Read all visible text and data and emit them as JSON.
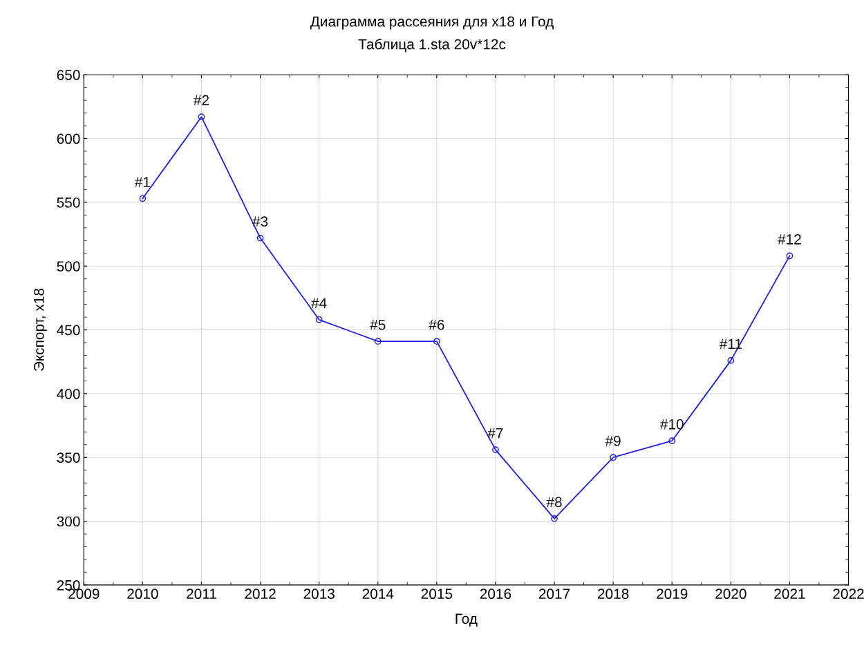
{
  "chart_data": {
    "type": "line",
    "title": "Диаграмма рассеяния для x18 и Год",
    "subtitle": "Таблица 1.sta 20v*12c",
    "xlabel": "Год",
    "ylabel": "Экспорт, x18",
    "x": [
      2010,
      2011,
      2012,
      2013,
      2014,
      2015,
      2016,
      2017,
      2018,
      2019,
      2020,
      2021
    ],
    "series": [
      {
        "color": "#2020e0",
        "values": [
          553,
          617,
          522,
          458,
          441,
          441,
          356,
          302,
          350,
          363,
          426,
          508
        ]
      }
    ],
    "annotations": [
      {
        "text": "#1",
        "x": 2010,
        "y": 553
      },
      {
        "text": "#2",
        "x": 2011,
        "y": 617
      },
      {
        "text": "#3",
        "x": 2012,
        "y": 522
      },
      {
        "text": "#4",
        "x": 2013,
        "y": 458
      },
      {
        "text": "#5",
        "x": 2014,
        "y": 441
      },
      {
        "text": "#6",
        "x": 2015,
        "y": 441
      },
      {
        "text": "#7",
        "x": 2016,
        "y": 356
      },
      {
        "text": "#8",
        "x": 2017,
        "y": 302
      },
      {
        "text": "#9",
        "x": 2018,
        "y": 350
      },
      {
        "text": "#10",
        "x": 2019,
        "y": 363
      },
      {
        "text": "#11",
        "x": 2020,
        "y": 426
      },
      {
        "text": "#12",
        "x": 2021,
        "y": 508
      }
    ],
    "xlim": [
      2009,
      2022
    ],
    "xticks": [
      2009,
      2010,
      2011,
      2012,
      2013,
      2014,
      2015,
      2016,
      2017,
      2018,
      2019,
      2020,
      2021,
      2022
    ],
    "ylim": [
      250,
      650
    ],
    "yticks": [
      250,
      300,
      350,
      400,
      450,
      500,
      550,
      600,
      650
    ],
    "grid": true,
    "marker": "circle",
    "line_style": "solid",
    "legend": false
  }
}
